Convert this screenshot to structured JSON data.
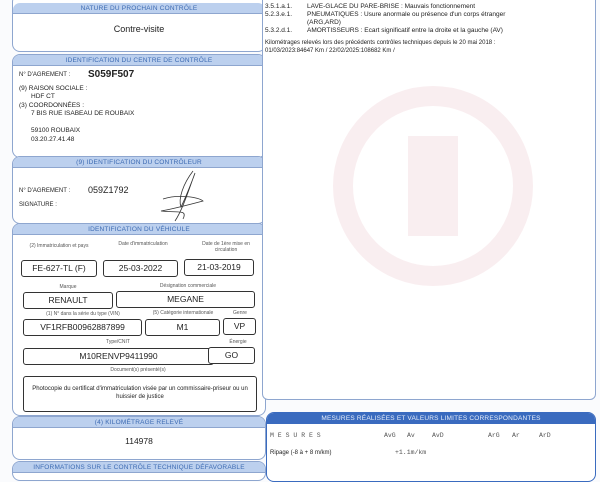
{
  "nature": {
    "header": "NATURE DU PROCHAIN CONTRÔLE",
    "value": "Contre-visite"
  },
  "centre": {
    "header": "IDENTIFICATION DU CENTRE DE CONTRÔLE",
    "agrement_label": "N° D'AGREMENT :",
    "agrement": "S059F507",
    "raison_label": "(9) RAISON SOCIALE :",
    "raison": "HDF CT",
    "coord_label": "(3) COORDONNÉES :",
    "address1": "7 BIS RUE ISABEAU DE ROUBAIX",
    "address2": "59100 ROUBAIX",
    "phone": "03.20.27.41.48"
  },
  "controleur": {
    "header": "(9) IDENTIFICATION DU CONTRÔLEUR",
    "agrement_label": "N° D'AGREMENT :",
    "agrement": "059Z1792",
    "signature_label": "SIGNATURE :"
  },
  "vehicule": {
    "header": "IDENTIFICATION DU VÉHICULE",
    "immat_label": "(2) Immatriculation et pays",
    "immat": "FE-627-TL (F)",
    "date_immat_label": "Date d'immatriculation",
    "date_immat": "25-03-2022",
    "date_mec_label": "Date de 1ère mise en circulation",
    "date_mec": "21-03-2019",
    "marque_label": "Marque",
    "marque": "RENAULT",
    "designation_label": "Désignation commerciale",
    "designation": "MEGANE",
    "vin_label": "(1) N° dans la série du type (VIN)",
    "vin": "VF1RFB00962887899",
    "categorie_label": "(5) Catégorie internationale",
    "categorie": "M1",
    "genre_label": "Genre",
    "genre": "VP",
    "type_label": "Type/CNIT",
    "type": "M10RENVP9411990",
    "energie_label": "Énergie",
    "energie": "GO",
    "documents_label": "Document(s) présenté(s)",
    "documents": "Photocopie du certificat d'immatriculation visée par un commissaire-priseur ou un huissier de justice"
  },
  "kilometrage": {
    "header": "(4) KILOMÉTRAGE RELEVÉ",
    "value": "114978"
  },
  "informations": {
    "header": "INFORMATIONS SUR LE CONTRÔLE TECHNIQUE DÉFAVORABLE"
  },
  "defauts": [
    {
      "code": "3.5.1.a.1.",
      "text": "LAVE-GLACE DU PARE-BRISE : Mauvais fonctionnement"
    },
    {
      "code": "5.2.3.e.1.",
      "text": "PNEUMATIQUES : Usure anormale ou présence d'un corps étranger"
    },
    {
      "code": "",
      "text": "(ARG,ARD)"
    },
    {
      "code": "5.3.2.d.1.",
      "text": "AMORTISSEURS : Ecart significatif entre la droite et la gauche (AV)"
    }
  ],
  "km_history": {
    "title": "Kilométrages relevés lors des précédents contrôles techniques depuis le 20 mai 2018 :",
    "values": "01/03/2023:84647 Km / 22/02/2025:108682 Km /"
  },
  "mesures": {
    "header": "MESURES RÉALISÉES ET VALEURS LIMITES CORRESPONDANTES",
    "col_title": "M E S U R E S",
    "cols": [
      "AvG",
      "Av",
      "AvD",
      "ArG",
      "Ar",
      "ArD"
    ],
    "rows": [
      {
        "label": "Ripage (-8 à + 8 m/km)",
        "av": "+1.1m/km"
      }
    ]
  }
}
